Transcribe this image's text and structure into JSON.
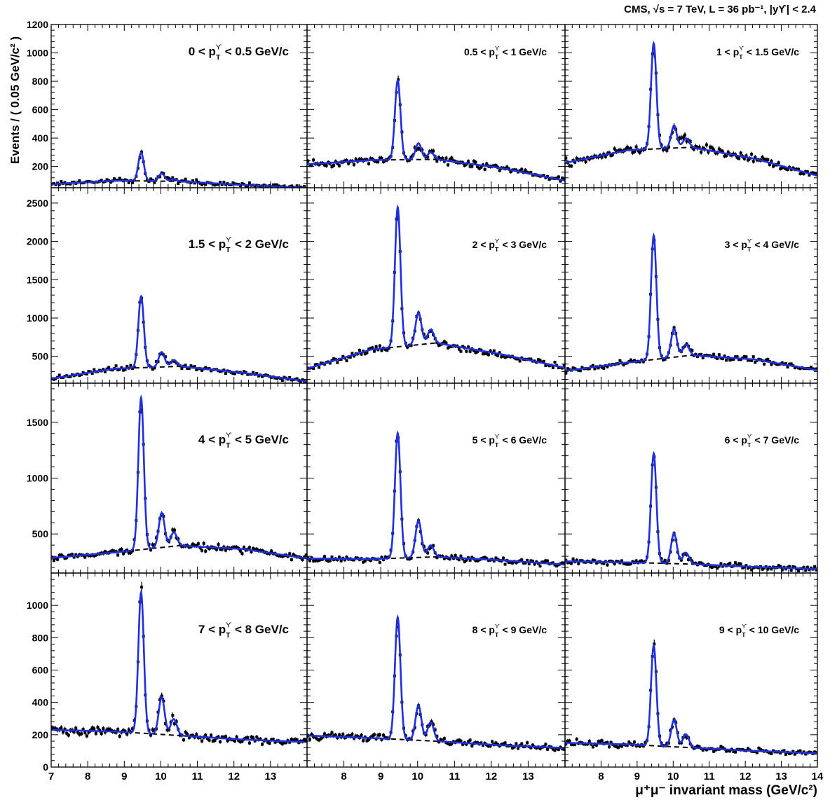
{
  "figure": {
    "header": "CMS,  √s = 7 TeV, L = 36 pb⁻¹, |yϒ| < 2.4",
    "ylabel": "Events / ( 0.05 GeV/c² )",
    "xlabel": "μ⁺μ⁻ invariant mass (GeV/c²)"
  },
  "colors": {
    "fit": "#1f2fe0",
    "background": "#000000",
    "points": "#000000"
  },
  "chart_data": {
    "type": "line",
    "xlim": [
      7,
      14
    ],
    "x_ticks": [
      7,
      8,
      9,
      10,
      11,
      12,
      13,
      14
    ],
    "legend": "none",
    "grid": false,
    "series_note": "",
    "rows": [
      {
        "ylim": [
          50,
          1200
        ],
        "y_ticks": [
          200,
          400,
          600,
          800,
          1000,
          1200
        ]
      },
      {
        "ylim": [
          150,
          2700
        ],
        "y_ticks": [
          500,
          1000,
          1500,
          2000,
          2500
        ]
      },
      {
        "ylim": [
          150,
          1850
        ],
        "y_ticks": [
          500,
          1000,
          1500
        ]
      },
      {
        "ylim": [
          0,
          1200
        ],
        "y_ticks": [
          0,
          200,
          400,
          600,
          800,
          1000
        ]
      }
    ],
    "panels": [
      {
        "label": "0 < pTϒ < 0.5 GeV/c",
        "lab_a": "0 < p",
        "lab_b": " < 0.5 GeV/c",
        "big": true,
        "bkg": [
          75,
          100,
          95,
          70,
          50
        ],
        "peaks": [
          200,
          55,
          15
        ]
      },
      {
        "label": "0.5 < pTϒ < 1 GeV/c",
        "lab_a": "0.5 < p",
        "lab_b": " < 1 GeV/c",
        "big": false,
        "bkg": [
          215,
          245,
          250,
          190,
          100
        ],
        "peaks": [
          560,
          115,
          50
        ]
      },
      {
        "label": "1 < pTϒ < 1.5 GeV/c",
        "lab_a": "1 < p",
        "lab_b": " < 1.5 GeV/c",
        "big": false,
        "bkg": [
          225,
          315,
          335,
          255,
          135
        ],
        "peaks": [
          745,
          155,
          65
        ]
      },
      {
        "label": "1.5 < pTϒ < 2 GeV/c",
        "lab_a": "1.5 < p",
        "lab_b": " < 2 GeV/c",
        "big": true,
        "bkg": [
          210,
          340,
          370,
          285,
          175
        ],
        "peaks": [
          930,
          195,
          85
        ]
      },
      {
        "label": "2 < pTϒ < 3 GeV/c",
        "lab_a": "2 < p",
        "lab_b": " < 3 GeV/c",
        "big": false,
        "bkg": [
          340,
          590,
          675,
          530,
          350
        ],
        "peaks": [
          1820,
          420,
          180
        ]
      },
      {
        "label": "3 < pTϒ < 4 GeV/c",
        "lab_a": "3 < p",
        "lab_b": " < 4 GeV/c",
        "big": false,
        "bkg": [
          310,
          420,
          515,
          460,
          320
        ],
        "peaks": [
          1620,
          370,
          150
        ]
      },
      {
        "label": "4 < pTϒ < 5 GeV/c",
        "lab_a": "4 < p",
        "lab_b": " < 5 GeV/c",
        "big": true,
        "bkg": [
          285,
          335,
          395,
          365,
          280
        ],
        "peaks": [
          1360,
          310,
          125
        ]
      },
      {
        "label": "5 < pTϒ < 6 GeV/c",
        "lab_a": "5 < p",
        "lab_b": " < 6 GeV/c",
        "big": false,
        "bkg": [
          280,
          275,
          295,
          265,
          225
        ],
        "peaks": [
          1120,
          330,
          105
        ]
      },
      {
        "label": "6 < pTϒ < 7 GeV/c",
        "lab_a": "6 < p",
        "lab_b": " < 7 GeV/c",
        "big": false,
        "bkg": [
          255,
          245,
          230,
          205,
          185
        ],
        "peaks": [
          980,
          270,
          100
        ]
      },
      {
        "label": "7 < pTϒ < 8 GeV/c",
        "lab_a": "7 < p",
        "lab_b": " < 8 GeV/c",
        "big": true,
        "bkg": [
          230,
          220,
          195,
          170,
          155
        ],
        "peaks": [
          870,
          230,
          100
        ]
      },
      {
        "label": "8 < pTϒ < 9 GeV/c",
        "lab_a": "8 < p",
        "lab_b": " < 9 GeV/c",
        "big": false,
        "bkg": [
          195,
          180,
          160,
          135,
          118
        ],
        "peaks": [
          755,
          215,
          115
        ]
      },
      {
        "label": "9 < pTϒ < 10 GeV/c",
        "lab_a": "9 < p",
        "lab_b": " < 10 GeV/c",
        "big": false,
        "bkg": [
          150,
          140,
          120,
          100,
          85
        ],
        "peaks": [
          620,
          165,
          80
        ]
      }
    ]
  }
}
